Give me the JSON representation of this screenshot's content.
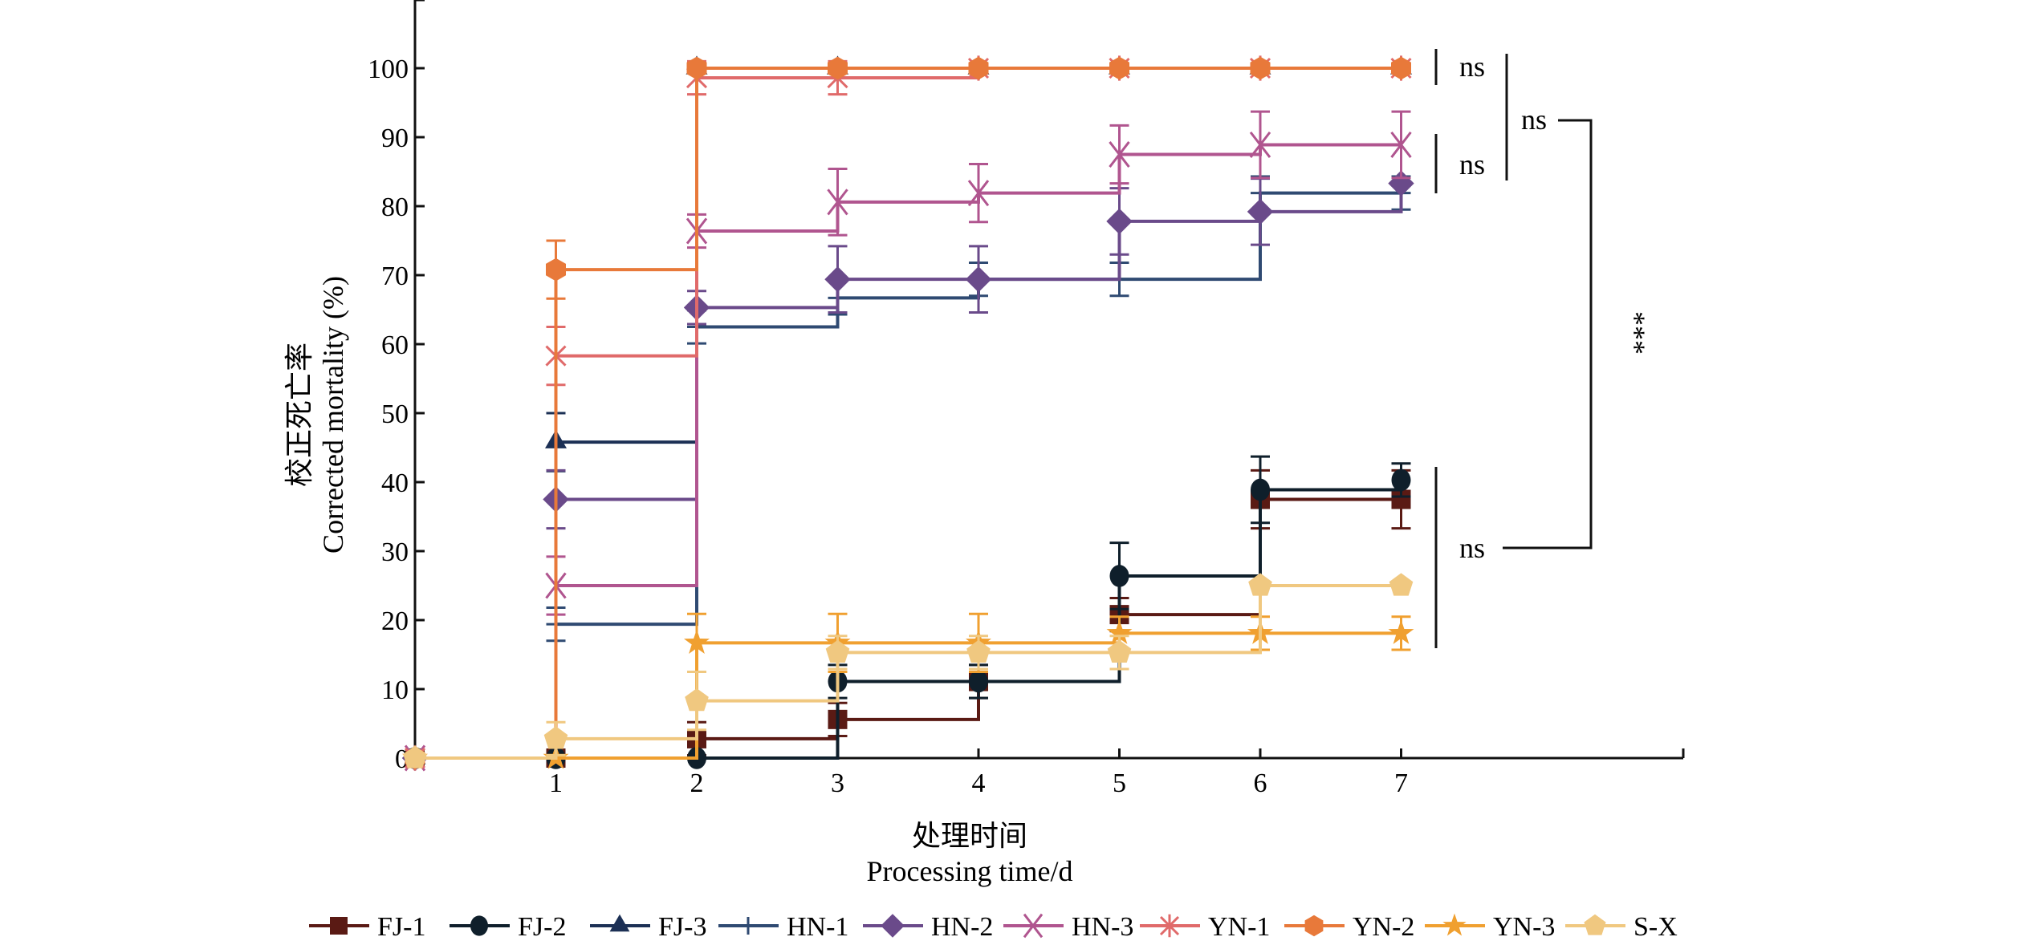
{
  "chart_data": {
    "type": "line",
    "step": "after",
    "xlabel_cn": "处理时间",
    "xlabel": "Processing time/d",
    "ylabel_cn": "校正死亡率",
    "ylabel": "Corrected mortality (%)",
    "x": [
      0,
      1,
      2,
      3,
      4,
      5,
      6,
      7
    ],
    "x_ticks": [
      "1",
      "2",
      "3",
      "4",
      "5",
      "6",
      "7"
    ],
    "y_ticks": [
      "0",
      "10",
      "20",
      "30",
      "40",
      "50",
      "60",
      "70",
      "80",
      "90",
      "100"
    ],
    "xlim": [
      0,
      9
    ],
    "ylim": [
      0,
      110
    ],
    "legend_position": "bottom",
    "series": [
      {
        "name": "FJ-1",
        "marker": "square",
        "color": "#5a1a14",
        "values": [
          0,
          0,
          2.8,
          5.6,
          11.1,
          20.8,
          37.5,
          37.5
        ],
        "err": [
          0,
          0,
          2.4,
          2.4,
          2.4,
          2.4,
          4.2,
          4.2
        ]
      },
      {
        "name": "FJ-2",
        "marker": "circle",
        "color": "#0f1f2b",
        "values": [
          0,
          0,
          0,
          11.1,
          11.1,
          26.4,
          38.9,
          40.3
        ],
        "err": [
          0,
          0,
          0,
          2.4,
          2.4,
          4.8,
          4.8,
          2.4
        ]
      },
      {
        "name": "FJ-3",
        "marker": "triangle",
        "color": "#1c3055",
        "values": [
          0,
          45.8,
          100,
          100,
          100,
          100,
          100,
          100
        ],
        "err": [
          0,
          4.2,
          0,
          0,
          0,
          0,
          0,
          0
        ]
      },
      {
        "name": "HN-1",
        "marker": "plus",
        "color": "#2f4a72",
        "values": [
          0,
          19.4,
          62.5,
          66.7,
          69.4,
          69.4,
          81.9,
          81.9
        ],
        "err": [
          0,
          2.4,
          2.4,
          2.4,
          2.4,
          2.4,
          2.4,
          2.4
        ]
      },
      {
        "name": "HN-2",
        "marker": "diamond",
        "color": "#6a4a8a",
        "values": [
          0,
          37.5,
          65.3,
          69.4,
          69.4,
          77.8,
          79.2,
          83.3
        ],
        "err": [
          0,
          4.2,
          2.4,
          4.8,
          4.8,
          4.8,
          4.8,
          0
        ]
      },
      {
        "name": "HN-3",
        "marker": "x",
        "color": "#b0558f",
        "values": [
          0,
          25,
          76.4,
          80.6,
          81.9,
          87.5,
          88.9,
          88.9
        ],
        "err": [
          0,
          4.2,
          2.4,
          4.8,
          4.2,
          4.2,
          4.8,
          4.8
        ]
      },
      {
        "name": "YN-1",
        "marker": "asterisk",
        "color": "#e06a6a",
        "values": [
          0,
          58.3,
          98.6,
          98.6,
          100,
          100,
          100,
          100
        ],
        "err": [
          0,
          4.2,
          2.4,
          2.4,
          0,
          0,
          0,
          0
        ]
      },
      {
        "name": "YN-2",
        "marker": "hexagon",
        "color": "#e8793a",
        "values": [
          0,
          70.8,
          100,
          100,
          100,
          100,
          100,
          100
        ],
        "err": [
          0,
          4.2,
          0,
          0,
          0,
          0,
          0,
          0
        ]
      },
      {
        "name": "YN-3",
        "marker": "star",
        "color": "#f0a030",
        "values": [
          0,
          0,
          16.7,
          16.7,
          16.7,
          18.1,
          18.1,
          18.1
        ],
        "err": [
          0,
          0,
          4.2,
          4.2,
          4.2,
          2.4,
          2.4,
          2.4
        ]
      },
      {
        "name": "S-X",
        "marker": "pentagon",
        "color": "#f0c880",
        "values": [
          0,
          2.8,
          8.3,
          15.3,
          15.3,
          15.3,
          25,
          25
        ],
        "err": [
          0,
          2.4,
          4.2,
          2.4,
          2.4,
          2.4,
          0,
          0
        ]
      }
    ],
    "annotations": {
      "ns_top": "ns",
      "ns_mid": "ns",
      "ns_outer": "ns",
      "ns_low": "ns",
      "sig": "***"
    }
  }
}
